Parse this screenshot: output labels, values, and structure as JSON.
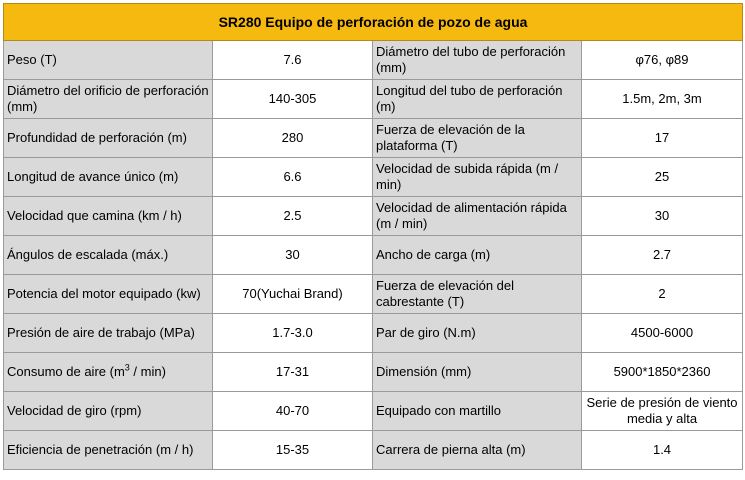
{
  "title": "SR280 Equipo de perforación de pozo de agua",
  "rows": [
    {
      "label1": "Peso (T)",
      "value1": "7.6",
      "label2": "Diámetro del tubo de perforación (mm)",
      "value2": "φ76, φ89"
    },
    {
      "label1": "Diámetro del orificio de perforación (mm)",
      "value1": "140-305",
      "label2": "Longitud del tubo de perforación (m)",
      "value2": "1.5m, 2m, 3m"
    },
    {
      "label1": "Profundidad de perforación (m)",
      "value1": "280",
      "label2": "Fuerza de elevación de la plataforma (T)",
      "value2": "17"
    },
    {
      "label1": "Longitud de avance único (m)",
      "value1": "6.6",
      "label2": "Velocidad de subida rápida (m / min)",
      "value2": "25"
    },
    {
      "label1": "Velocidad que camina (km / h)",
      "value1": "2.5",
      "label2": "Velocidad de alimentación rápida (m / min)",
      "value2": "30"
    },
    {
      "label1": "Ángulos de escalada (máx.)",
      "value1": "30",
      "label2": "Ancho de carga (m)",
      "value2": "2.7"
    },
    {
      "label1": "Potencia del motor equipado (kw)",
      "value1": "70(Yuchai Brand)",
      "label2": "Fuerza de elevación del cabrestante (T)",
      "value2": "2"
    },
    {
      "label1": "Presión de aire de trabajo (MPa)",
      "value1": "1.7-3.0",
      "label2": "Par de giro (N.m)",
      "value2": "4500-6000"
    },
    {
      "label1_prefix": "Consumo de aire (m",
      "label1_sup": "3",
      "label1_suffix": " / min)",
      "value1": "17-31",
      "label2": "Dimensión (mm)",
      "value2": "5900*1850*2360"
    },
    {
      "label1": "Velocidad de giro (rpm)",
      "value1": "40-70",
      "label2": "Equipado con martillo",
      "value2": "Serie de presión de viento media y alta"
    },
    {
      "label1": "Eficiencia de penetración (m / h)",
      "value1": "15-35",
      "label2": "Carrera de pierna alta (m)",
      "value2": "1.4"
    }
  ],
  "colors": {
    "header_bg": "#f5b90f",
    "label_bg": "#d9d9d9",
    "value_bg": "#ffffff",
    "border": "#9a9a9a"
  }
}
